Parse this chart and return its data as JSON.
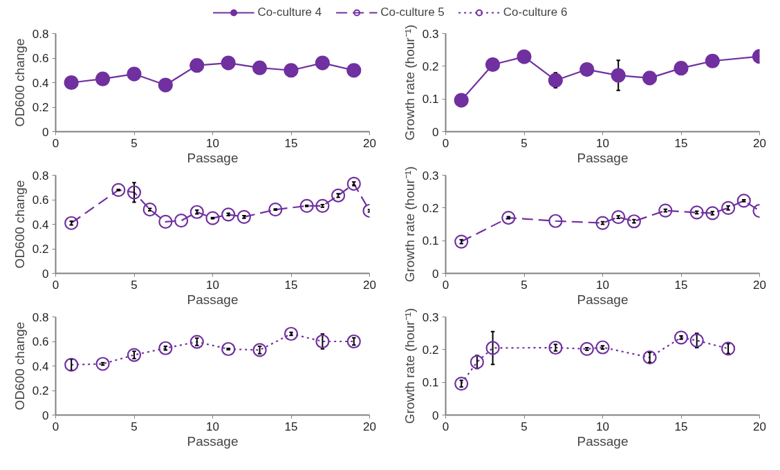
{
  "chart_data": [
    {
      "type": "line",
      "xlabel": "Passage",
      "ylabel": "OD600 change",
      "xlim": [
        0,
        20
      ],
      "xticks": [
        0,
        5,
        10,
        15,
        20
      ],
      "ylim": [
        0,
        0.8
      ],
      "yticks": [
        0,
        0.2,
        0.4,
        0.6,
        0.8
      ],
      "grid": false,
      "legend": "top",
      "marker": "circle",
      "line_style": "solid",
      "x": [
        1,
        3,
        5,
        7,
        9,
        11,
        13,
        15,
        17,
        19
      ],
      "series": [
        {
          "name": "Co-culture 4",
          "color": "#7030a0",
          "values": [
            0.4,
            0.43,
            0.47,
            0.38,
            0.54,
            0.56,
            0.52,
            0.5,
            0.56,
            0.5
          ]
        }
      ]
    },
    {
      "type": "line",
      "xlabel": "Passage",
      "ylabel": "Growth rate (hour⁻¹)",
      "xlim": [
        0,
        20
      ],
      "xticks": [
        0,
        5,
        10,
        15,
        20
      ],
      "ylim": [
        0,
        0.3
      ],
      "yticks": [
        0,
        0.1,
        0.2,
        0.3
      ],
      "grid": false,
      "marker": "circle",
      "line_style": "solid",
      "x": [
        1,
        3,
        5,
        7,
        9,
        11,
        13,
        15,
        17,
        20
      ],
      "series": [
        {
          "color": "#7030a0",
          "values": [
            0.096,
            0.205,
            0.229,
            0.157,
            0.19,
            0.172,
            0.164,
            0.194,
            0.216,
            0.23
          ],
          "errors": [
            null,
            null,
            null,
            0.023,
            null,
            0.046,
            null,
            null,
            null,
            null
          ]
        }
      ]
    },
    {
      "type": "line",
      "xlabel": "Passage",
      "ylabel": "OD600 change",
      "xlim": [
        0,
        20
      ],
      "xticks": [
        0,
        5,
        10,
        15,
        20
      ],
      "ylim": [
        0,
        0.8
      ],
      "yticks": [
        0,
        0.2,
        0.4,
        0.6,
        0.8
      ],
      "grid": false,
      "legend": "top",
      "marker": "circle",
      "line_style": "dashed",
      "x": [
        1,
        4,
        5,
        6,
        7,
        8,
        9,
        10,
        11,
        12,
        14,
        16,
        17,
        18,
        19,
        20
      ],
      "series": [
        {
          "name": "Co-culture 5",
          "color": "#7030a0",
          "values": [
            0.41,
            0.68,
            0.66,
            0.52,
            0.42,
            0.43,
            0.5,
            0.45,
            0.48,
            0.46,
            0.52,
            0.55,
            0.55,
            0.635,
            0.73,
            0.51
          ],
          "errors": [
            0.015,
            0.005,
            0.08,
            0.01,
            null,
            null,
            0.015,
            0.005,
            0.01,
            0.01,
            0.005,
            0.005,
            0.01,
            0.015,
            0.015,
            0.01
          ]
        }
      ]
    },
    {
      "type": "line",
      "xlabel": "Passage",
      "ylabel": "Growth rate (hour⁻¹)",
      "xlim": [
        0,
        20
      ],
      "xticks": [
        0,
        5,
        10,
        15,
        20
      ],
      "ylim": [
        0,
        0.3
      ],
      "yticks": [
        0,
        0.1,
        0.2,
        0.3
      ],
      "grid": false,
      "marker": "circle",
      "line_style": "dashed",
      "x": [
        1,
        4,
        7,
        10,
        11,
        12,
        14,
        16,
        17,
        18,
        19,
        20
      ],
      "series": [
        {
          "color": "#7030a0",
          "values": [
            0.097,
            0.17,
            0.16,
            0.154,
            0.172,
            0.159,
            0.192,
            0.186,
            0.184,
            0.2,
            0.222,
            0.191
          ],
          "errors": [
            0.006,
            0.003,
            null,
            0.004,
            0.004,
            0.005,
            0.004,
            0.004,
            0.005,
            0.006,
            0.003,
            null
          ]
        }
      ]
    },
    {
      "type": "line",
      "xlabel": "Passage",
      "ylabel": "OD600 change",
      "xlim": [
        0,
        20
      ],
      "xticks": [
        0,
        5,
        10,
        15,
        20
      ],
      "ylim": [
        0,
        0.8
      ],
      "yticks": [
        0,
        0.2,
        0.4,
        0.6,
        0.8
      ],
      "grid": false,
      "legend": "top",
      "marker": "circle",
      "line_style": "dotted",
      "x": [
        1,
        3,
        5,
        7,
        9,
        11,
        13,
        15,
        17,
        19
      ],
      "series": [
        {
          "name": "Co-culture 6",
          "color": "#7030a0",
          "values": [
            0.41,
            0.417,
            0.49,
            0.545,
            0.597,
            0.538,
            0.53,
            0.662,
            0.6,
            0.6
          ],
          "errors": [
            0.045,
            0.01,
            0.03,
            0.015,
            0.03,
            0.005,
            0.03,
            0.012,
            0.06,
            0.03
          ]
        }
      ]
    },
    {
      "type": "line",
      "xlabel": "Passage",
      "ylabel": "Growth rate (hour⁻¹)",
      "xlim": [
        0,
        20
      ],
      "xticks": [
        0,
        5,
        10,
        15,
        20
      ],
      "ylim": [
        0,
        0.3
      ],
      "yticks": [
        0,
        0.1,
        0.2,
        0.3
      ],
      "grid": false,
      "marker": "circle",
      "line_style": "dotted",
      "x": [
        1,
        2,
        3,
        7,
        9,
        10,
        13,
        15,
        16,
        18
      ],
      "series": [
        {
          "color": "#7030a0",
          "values": [
            0.096,
            0.162,
            0.205,
            0.206,
            0.202,
            0.207,
            0.176,
            0.237,
            0.228,
            0.203
          ],
          "errors": [
            0.01,
            0.02,
            0.05,
            0.01,
            0.004,
            0.005,
            0.015,
            0.005,
            0.022,
            0.015
          ]
        }
      ]
    }
  ]
}
